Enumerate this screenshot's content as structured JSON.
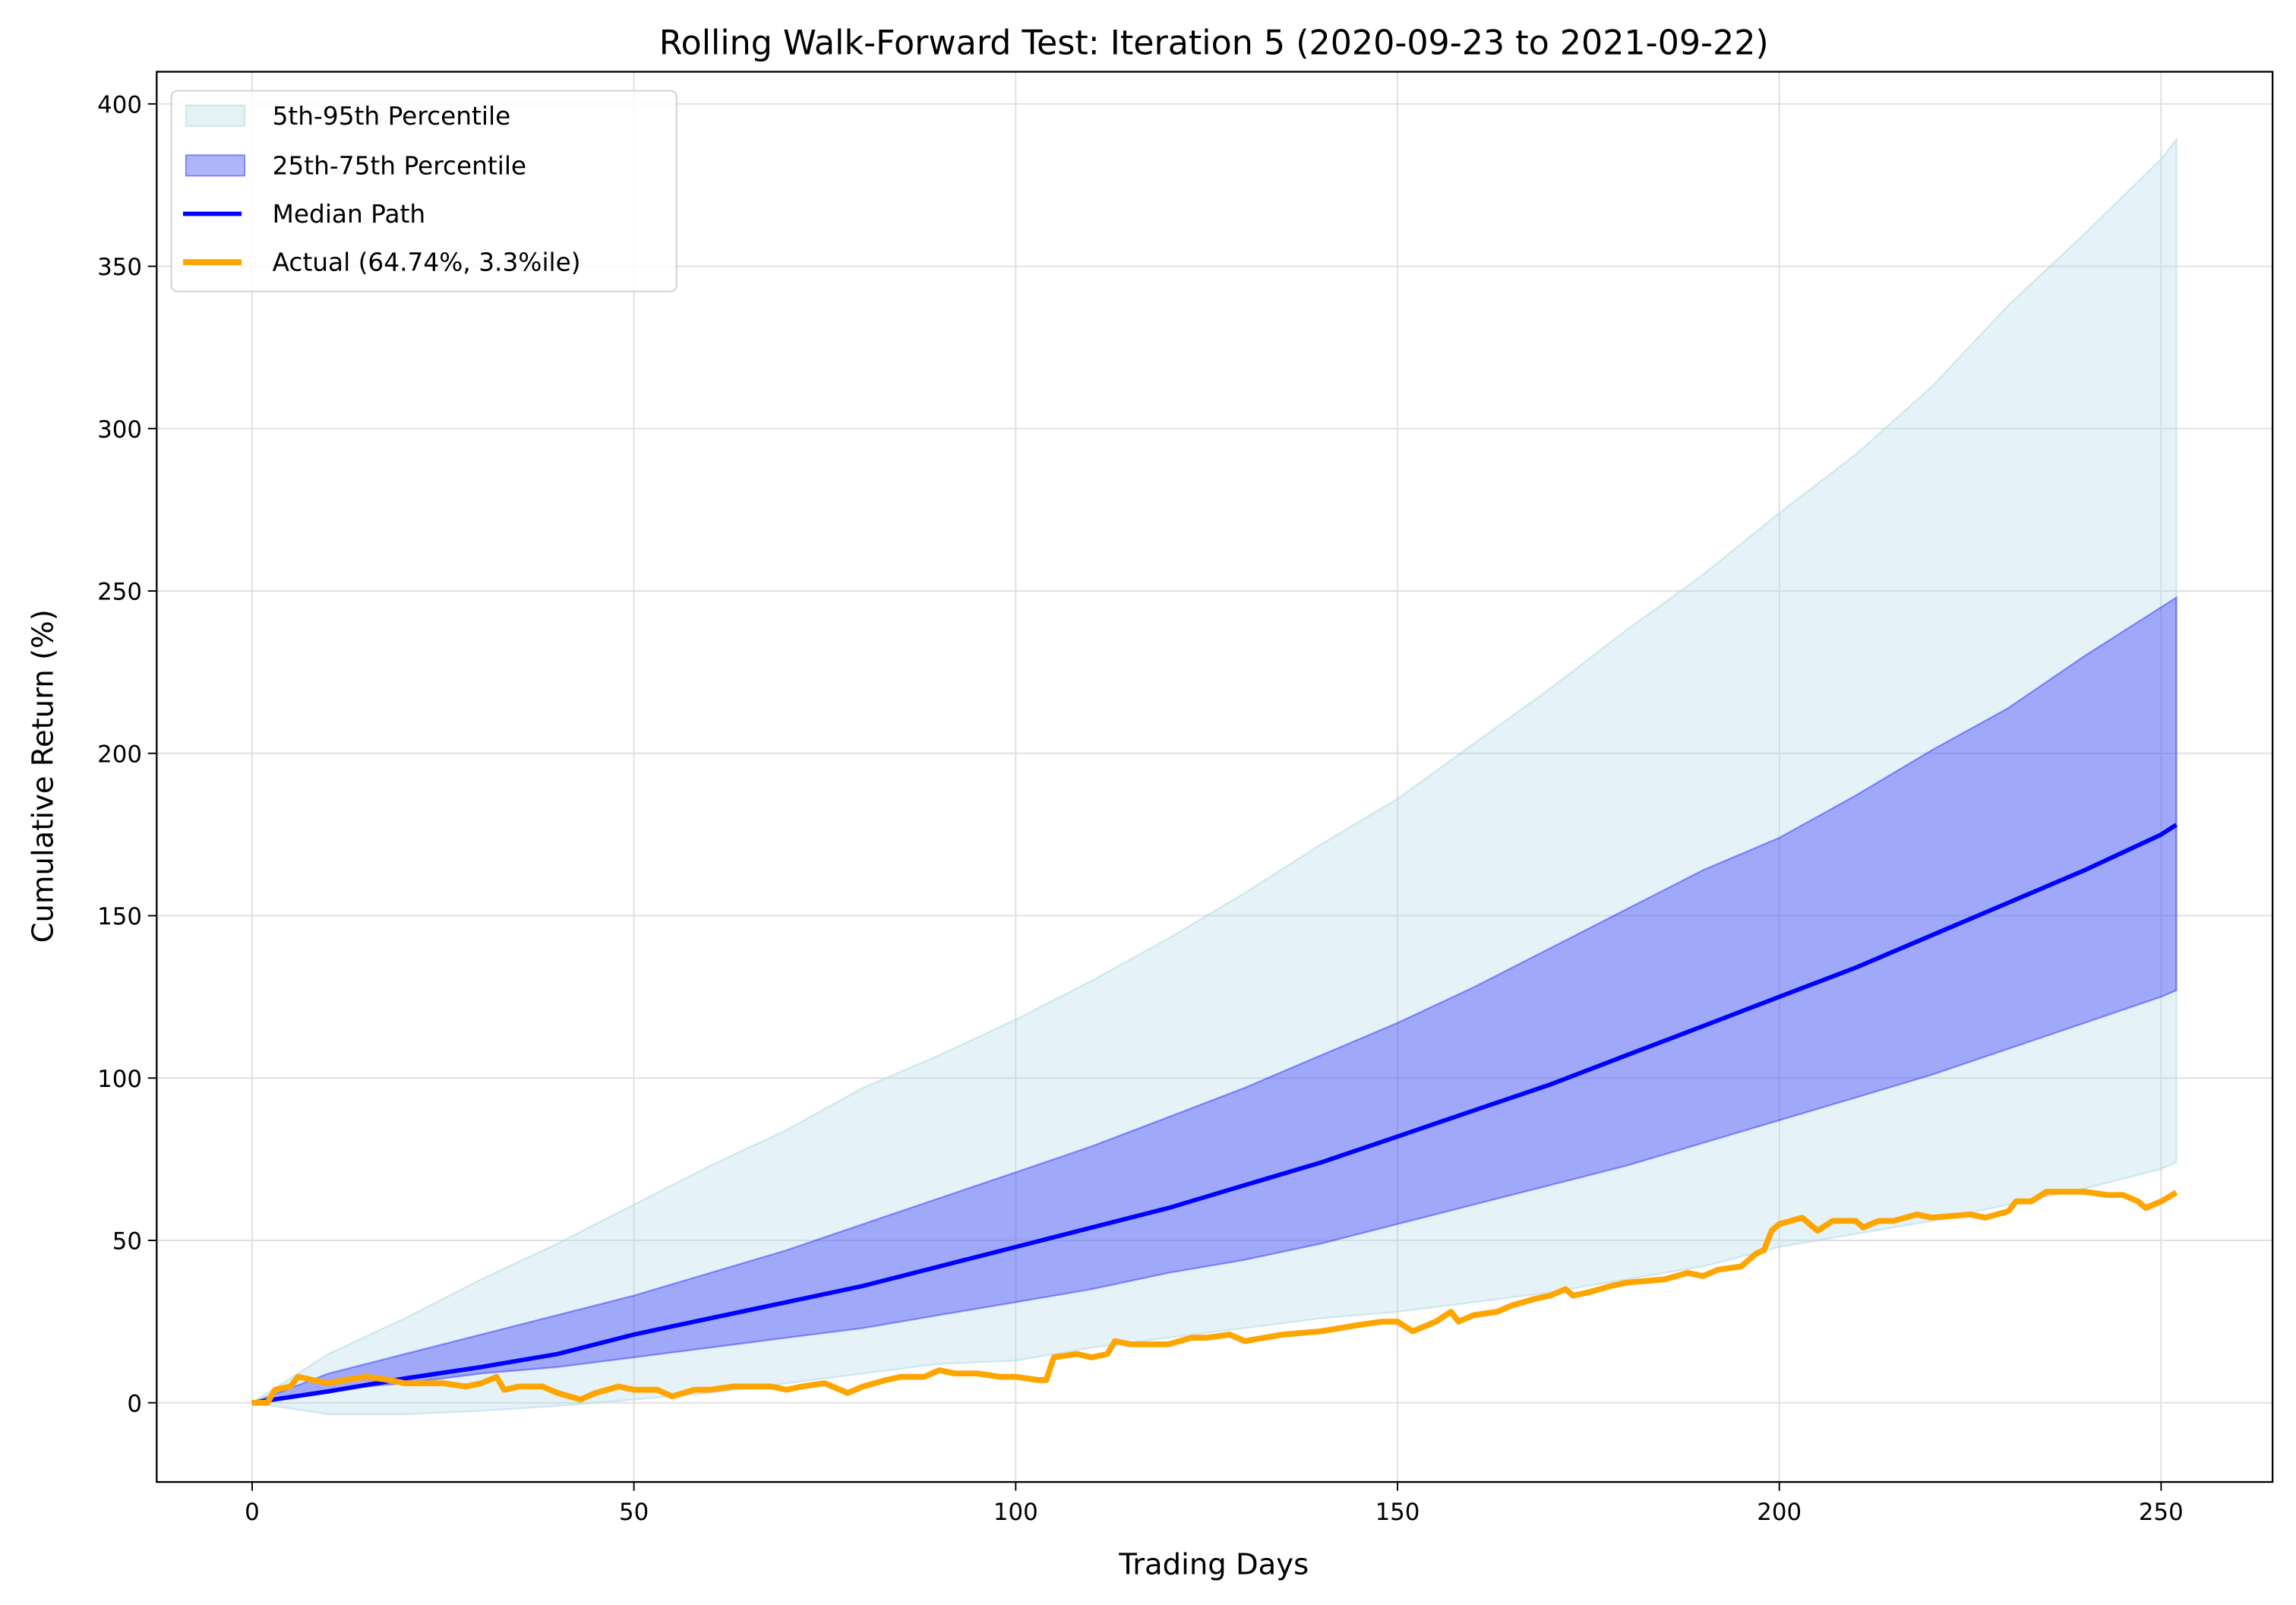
{
  "chart_data": {
    "type": "area",
    "title": "Rolling Walk-Forward Test: Iteration 5 (2020-09-23 to 2021-09-22)",
    "xlabel": "Trading Days",
    "ylabel": "Cumulative Return (%)",
    "xlim": [
      -12.5,
      264.6
    ],
    "ylim": [
      -24.4,
      409.9
    ],
    "xticks": [
      0,
      50,
      100,
      150,
      200,
      250
    ],
    "yticks": [
      0,
      50,
      100,
      150,
      200,
      250,
      300,
      350,
      400
    ],
    "grid": true,
    "legend_position": "top-left",
    "bands": [
      {
        "name": "5th-95th Percentile",
        "color": "#add8e6",
        "x": [
          0,
          10,
          20,
          30,
          40,
          50,
          60,
          70,
          80,
          90,
          100,
          110,
          120,
          130,
          140,
          150,
          160,
          170,
          180,
          190,
          200,
          210,
          220,
          230,
          240,
          250,
          252
        ],
        "lower": [
          0,
          -3.5,
          -3.5,
          -2.5,
          -1,
          1,
          3,
          6,
          9,
          12,
          13,
          17,
          20,
          23,
          26,
          28,
          31,
          34,
          38,
          42,
          48,
          52,
          56,
          61,
          66,
          72,
          74
        ],
        "upper": [
          0,
          15,
          26,
          38,
          49,
          61,
          73,
          84,
          97,
          107,
          118,
          130,
          143,
          157,
          172,
          186,
          203,
          220,
          238,
          255,
          274,
          292,
          313,
          338,
          360,
          383,
          389
        ]
      },
      {
        "name": "25th-75th Percentile",
        "color": "#0000ff",
        "x": [
          0,
          10,
          20,
          30,
          40,
          50,
          60,
          70,
          80,
          90,
          100,
          110,
          120,
          130,
          140,
          150,
          160,
          170,
          180,
          190,
          200,
          210,
          220,
          230,
          240,
          250,
          252
        ],
        "lower": [
          0,
          4,
          6,
          9,
          11,
          14,
          17,
          20,
          23,
          27,
          31,
          35,
          40,
          44,
          49,
          55,
          61,
          67,
          73,
          80,
          87,
          94,
          101,
          109,
          117,
          125,
          127
        ],
        "upper": [
          0,
          9,
          15,
          21,
          27,
          33,
          40,
          47,
          55,
          63,
          71,
          79,
          88,
          97,
          107,
          117,
          128,
          140,
          152,
          164,
          174,
          187,
          201,
          214,
          230,
          245,
          248
        ]
      }
    ],
    "series": [
      {
        "name": "Median Path",
        "color": "#0000ff",
        "x": [
          0,
          10,
          20,
          30,
          40,
          50,
          60,
          70,
          80,
          90,
          100,
          110,
          120,
          130,
          140,
          150,
          160,
          170,
          180,
          190,
          200,
          210,
          220,
          230,
          240,
          250,
          252
        ],
        "y": [
          0,
          3.5,
          7.5,
          11,
          15,
          21,
          26,
          31,
          36,
          42,
          48,
          54,
          60,
          67,
          74,
          82,
          90,
          98,
          107,
          116,
          125,
          134,
          144,
          154,
          164,
          175,
          178
        ]
      },
      {
        "name": "Actual (64.74%, 3.3%ile)",
        "color": "#ffa500",
        "x": [
          0,
          2,
          3,
          5,
          6,
          8,
          10,
          12,
          15,
          18,
          20,
          25,
          28,
          30,
          32,
          33,
          35,
          38,
          40,
          43,
          45,
          48,
          50,
          53,
          55,
          58,
          60,
          63,
          65,
          68,
          70,
          72,
          75,
          78,
          80,
          83,
          85,
          88,
          90,
          92,
          95,
          98,
          100,
          103,
          104,
          105,
          108,
          110,
          112,
          113,
          115,
          120,
          123,
          125,
          128,
          130,
          135,
          140,
          145,
          148,
          150,
          152,
          155,
          157,
          158,
          160,
          163,
          165,
          168,
          170,
          172,
          173,
          175,
          178,
          180,
          185,
          188,
          190,
          192,
          195,
          197,
          198,
          199,
          200,
          203,
          205,
          207,
          210,
          211,
          213,
          215,
          218,
          220,
          225,
          227,
          230,
          231,
          233,
          235,
          240,
          243,
          245,
          247,
          248,
          250,
          252
        ],
        "y": [
          0,
          0,
          4,
          5,
          8,
          7,
          6,
          7,
          8,
          7,
          6,
          6,
          5,
          6,
          8,
          4,
          5,
          5,
          3,
          1,
          3,
          5,
          4,
          4,
          2,
          4,
          4,
          5,
          5,
          5,
          4,
          5,
          6,
          3,
          5,
          7,
          8,
          8,
          10,
          9,
          9,
          8,
          8,
          7,
          7,
          14,
          15,
          14,
          15,
          19,
          18,
          18,
          20,
          20,
          21,
          19,
          21,
          22,
          24,
          25,
          25,
          22,
          25,
          28,
          25,
          27,
          28,
          30,
          32,
          33,
          35,
          33,
          34,
          36,
          37,
          38,
          40,
          39,
          41,
          42,
          46,
          47,
          53,
          55,
          57,
          53,
          56,
          56,
          54,
          56,
          56,
          58,
          57,
          58,
          57,
          59,
          62,
          62,
          65,
          65,
          64,
          64,
          62,
          60,
          62,
          64.74
        ]
      }
    ]
  }
}
